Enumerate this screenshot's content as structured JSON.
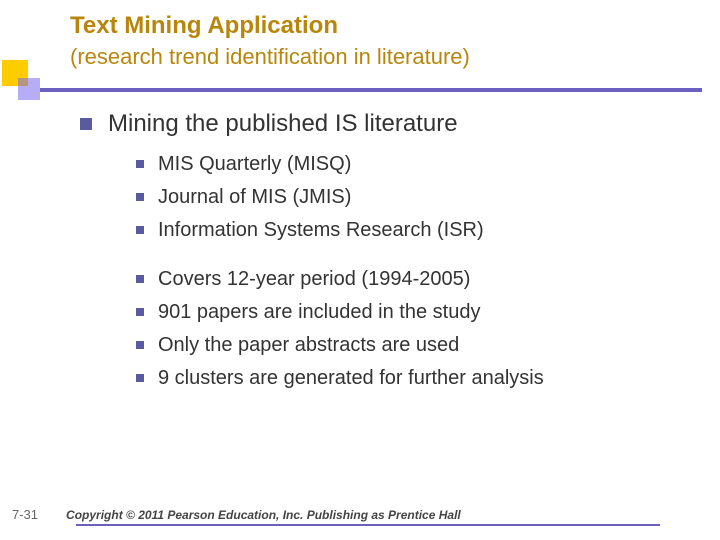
{
  "colors": {
    "accent_yellow": "#ffcc00",
    "accent_purple": "#6b5fbf",
    "title_color": "#b8860b",
    "bullet_color": "#5a5aa0",
    "body_text": "#333333",
    "background": "#ffffff"
  },
  "typography": {
    "title_fontsize": 24,
    "subtitle_fontsize": 22,
    "lvl1_fontsize": 24,
    "lvl2_fontsize": 20,
    "footer_fontsize": 12
  },
  "title": "Text Mining Application",
  "subtitle": "(research trend identification in literature)",
  "lvl1_item": "Mining the published IS literature",
  "group1": {
    "0": "MIS Quarterly (MISQ)",
    "1": "Journal of MIS (JMIS)",
    "2": "Information Systems Research (ISR)"
  },
  "group2": {
    "0": "Covers 12-year period (1994-2005)",
    "1": "901 papers are included in the study",
    "2": "Only the paper abstracts are used",
    "3": "9 clusters are generated for further analysis"
  },
  "slide_number": "7-31",
  "copyright": "Copyright © 2011 Pearson Education, Inc. Publishing as Prentice Hall"
}
